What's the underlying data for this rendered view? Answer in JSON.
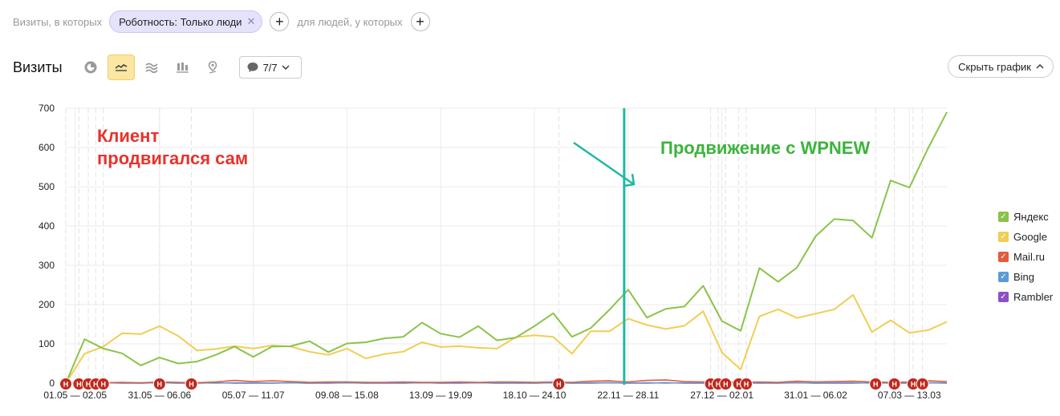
{
  "filters": {
    "prefix": "Визиты, в которых",
    "chip_label": "Роботность: Только люди",
    "people_label": "для людей, у которых",
    "add_symbol": "+",
    "remove_symbol": "✕"
  },
  "toolbar": {
    "title": "Визиты",
    "icons": [
      "pie-chart-icon",
      "line-chart-icon",
      "stacked-area-icon",
      "bar-chart-icon",
      "map-pin-icon"
    ],
    "active_icon": "line-chart-icon",
    "notes_count": "7/7",
    "hide_chart_label": "Скрыть график"
  },
  "colors": {
    "accent_turquoise": "#1fb8a6",
    "annotation_red": "#e8322b",
    "annotation_green": "#3cb43c",
    "note_marker": "#c0281e"
  },
  "chart_data": {
    "type": "line",
    "ylim": [
      0,
      700
    ],
    "yticks": [
      0,
      100,
      200,
      300,
      400,
      500,
      600,
      700
    ],
    "grid": true,
    "x_tick_labels": [
      "01.05 — 02.05",
      "31.05 — 06.06",
      "05.07 — 11.07",
      "09.08 — 15.08",
      "13.09 — 19.09",
      "18.10 — 24.10",
      "22.11 — 28.11",
      "27.12 — 02.01",
      "31.01 — 06.02",
      "07.03 — 13.03"
    ],
    "tick_label_positions": [
      0.5,
      5,
      10,
      15,
      20,
      25,
      30,
      35,
      40,
      45
    ],
    "n_points": 48,
    "legend_position": "right",
    "series": [
      {
        "name": "Яндекс",
        "color": "#8bc34a",
        "values": [
          0,
          112,
          88,
          76,
          45,
          65,
          50,
          55,
          72,
          93,
          67,
          93,
          94,
          107,
          79,
          101,
          104,
          114,
          118,
          154,
          126,
          117,
          145,
          109,
          116,
          145,
          178,
          118,
          140,
          187,
          238,
          167,
          189,
          195,
          248,
          158,
          133,
          293,
          258,
          294,
          374,
          418,
          414,
          370,
          516,
          498,
          598,
          690
        ]
      },
      {
        "name": "Google",
        "color": "#f0ce53",
        "values": [
          0,
          75,
          93,
          127,
          125,
          145,
          120,
          83,
          87,
          94,
          88,
          96,
          93,
          80,
          72,
          88,
          63,
          74,
          80,
          104,
          92,
          94,
          90,
          88,
          117,
          122,
          118,
          75,
          132,
          132,
          164,
          148,
          138,
          146,
          183,
          78,
          35,
          170,
          188,
          166,
          177,
          188,
          225,
          130,
          160,
          128,
          135,
          156
        ]
      },
      {
        "name": "Mail.ru",
        "color": "#e45a3b",
        "values": [
          0,
          2,
          1,
          2,
          1,
          3,
          2,
          1,
          3,
          7,
          4,
          6,
          4,
          2,
          3,
          3,
          2,
          2,
          3,
          2,
          2,
          3,
          2,
          3,
          3,
          2,
          3,
          2,
          5,
          6,
          3,
          7,
          8,
          4,
          3,
          4,
          2,
          3,
          2,
          5,
          3,
          4,
          5,
          3,
          2,
          3,
          6,
          4
        ]
      },
      {
        "name": "Bing",
        "color": "#5b9bd5",
        "values": [
          0,
          1,
          0,
          1,
          0,
          1,
          0,
          1,
          0,
          1,
          1,
          0,
          1,
          0,
          1,
          1,
          0,
          1,
          0,
          1,
          0,
          1,
          1,
          0,
          1,
          0,
          1,
          0,
          1,
          1,
          0,
          1,
          0,
          1,
          1,
          0,
          1,
          0,
          1,
          1,
          0,
          1,
          1,
          0,
          1,
          0,
          1,
          1
        ]
      },
      {
        "name": "Rambler",
        "color": "#8e4fc4",
        "values": [
          0,
          0,
          1,
          0,
          0,
          1,
          0,
          0,
          1,
          0,
          0,
          0,
          1,
          0,
          0,
          1,
          0,
          0,
          0,
          1,
          0,
          0,
          1,
          0,
          0,
          0,
          1,
          0,
          0,
          1,
          0,
          0,
          1,
          0,
          0,
          0,
          1,
          0,
          0,
          1,
          0,
          0,
          0,
          1,
          0,
          0,
          1,
          0
        ]
      }
    ],
    "note_marker_label": "Н",
    "note_markers": [
      0,
      0.7,
      1.2,
      1.6,
      2,
      5,
      6.7,
      26.3,
      34.4,
      34.8,
      35.2,
      35.9,
      36.3,
      43.2,
      44.2,
      45.2,
      45.7
    ],
    "vertical_marker_x": 30,
    "annotations": [
      {
        "text_lines": [
          "Клиент",
          "продвигался сам"
        ],
        "color": "#e8322b"
      },
      {
        "text_lines": [
          "Продвижение с WPNEW"
        ],
        "color": "#3cb43c"
      }
    ]
  }
}
